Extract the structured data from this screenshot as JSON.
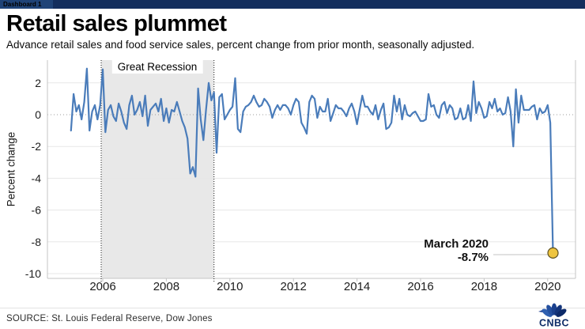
{
  "window": {
    "tab_label": "Dashboard 1"
  },
  "header": {
    "title": "Retail sales plummet",
    "subtitle": "Advance retail sales and food service sales, percent change from prior month, seasonally adjusted."
  },
  "chart_data": {
    "type": "line",
    "title": "Retail sales plummet",
    "xlabel": "",
    "ylabel": "Percent change",
    "x_ticks": [
      2006,
      2008,
      2010,
      2012,
      2014,
      2016,
      2018,
      2020
    ],
    "y_ticks": [
      2,
      0,
      -2,
      -4,
      -6,
      -8,
      -10
    ],
    "xlim": [
      2004.3,
      2020.9
    ],
    "ylim": [
      -10.3,
      3.4
    ],
    "grid": "horizontal",
    "legend": "none",
    "band": {
      "label": "Great Recession",
      "start": 2005.95,
      "end": 2009.5
    },
    "series": [
      {
        "name": "Advance retail and food service sales, % change from prior month",
        "start_year": 2005,
        "start_month": 1,
        "frequency": "monthly",
        "values": [
          -1.0,
          1.3,
          0.2,
          0.6,
          -0.3,
          0.8,
          2.9,
          -1.0,
          0.2,
          0.6,
          -0.3,
          0.6,
          2.85,
          -1.1,
          0.3,
          0.6,
          -0.1,
          -0.4,
          0.7,
          0.2,
          -0.5,
          -0.9,
          0.6,
          1.2,
          0.0,
          0.3,
          0.8,
          -0.1,
          1.2,
          -0.7,
          0.3,
          0.5,
          0.7,
          0.2,
          1.0,
          -0.4,
          0.4,
          -0.5,
          0.3,
          0.2,
          0.8,
          0.2,
          -0.4,
          -0.8,
          -1.5,
          -3.7,
          -3.3,
          -3.9,
          1.65,
          -0.3,
          -1.6,
          0.3,
          2.0,
          0.9,
          1.4,
          -2.4,
          1.1,
          1.3,
          -0.3,
          0.0,
          0.3,
          0.5,
          2.3,
          -0.9,
          -1.1,
          0.2,
          0.5,
          0.6,
          0.8,
          1.2,
          0.8,
          0.5,
          0.6,
          1.0,
          0.8,
          0.5,
          -0.2,
          0.3,
          0.6,
          0.3,
          0.6,
          0.6,
          0.4,
          0.0,
          0.6,
          1.0,
          0.8,
          -0.5,
          -0.8,
          -1.2,
          0.8,
          1.2,
          1.0,
          -0.2,
          0.5,
          0.2,
          0.2,
          1.0,
          -0.4,
          0.1,
          0.6,
          0.4,
          0.4,
          0.2,
          -0.1,
          0.4,
          0.7,
          0.2,
          -0.6,
          0.3,
          1.2,
          0.5,
          0.5,
          0.2,
          0.0,
          0.6,
          -0.3,
          0.3,
          0.7,
          -0.9,
          -0.8,
          -0.5,
          1.2,
          0.2,
          1.0,
          -0.3,
          0.6,
          0.0,
          -0.1,
          0.1,
          0.2,
          -0.1,
          -0.4,
          -0.4,
          -0.3,
          1.3,
          0.5,
          0.6,
          0.0,
          -0.2,
          0.6,
          0.8,
          0.1,
          0.6,
          0.4,
          -0.3,
          -0.2,
          0.4,
          -0.3,
          -0.2,
          0.6,
          -0.4,
          2.1,
          0.1,
          0.8,
          0.4,
          -0.2,
          -0.1,
          0.8,
          0.4,
          1.0,
          0.2,
          0.4,
          0.0,
          0.1,
          1.1,
          0.2,
          -2.0,
          1.6,
          -0.5,
          1.2,
          0.3,
          0.3,
          0.3,
          0.5,
          0.6,
          -0.3,
          0.4,
          0.1,
          0.2,
          0.6,
          -0.5,
          -8.7
        ]
      }
    ],
    "annotation": {
      "line1": "March 2020",
      "line2": "-8.7%",
      "x": 2020.167,
      "y": -8.7
    },
    "colors": {
      "line": "#4a7cba",
      "marker_fill": "#eec43f",
      "marker_stroke": "#5f5222",
      "band_fill": "#e8e8e8",
      "band_border": "#1a1a1a",
      "grid": "#e7e7e7",
      "zero_line": "#9e9e9e",
      "axis": "#c4c4c4",
      "tick_text": "#1c1c1c"
    }
  },
  "footer": {
    "source": "SOURCE: St. Louis Federal Reserve, Dow Jones",
    "logo_text": "CNBC",
    "brand_navy": "#0c2b67"
  }
}
